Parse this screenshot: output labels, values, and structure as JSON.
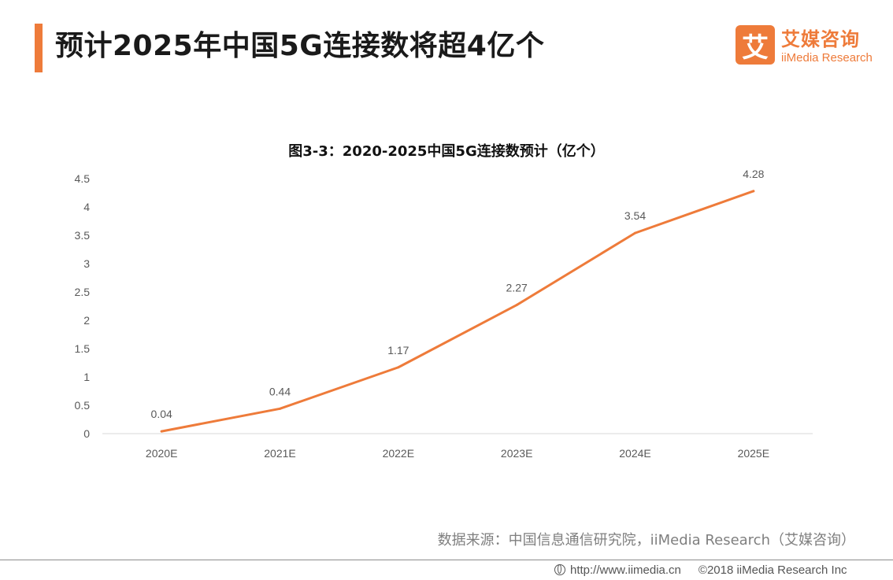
{
  "header": {
    "title": "预计2025年中国5G连接数将超4亿个"
  },
  "logo": {
    "mark": "艾",
    "name_cn": "艾媒咨询",
    "name_en": "iiMedia Research"
  },
  "chart_data": {
    "type": "line",
    "title": "图3-3：2020-2025中国5G连接数预计（亿个）",
    "categories": [
      "2020E",
      "2021E",
      "2022E",
      "2023E",
      "2024E",
      "2025E"
    ],
    "series": [
      {
        "values": [
          0.04,
          0.44,
          1.17,
          2.27,
          3.54,
          4.28
        ],
        "color": "#ee7b3a"
      }
    ],
    "data_labels": [
      "0.04",
      "0.44",
      "1.17",
      "2.27",
      "3.54",
      "4.28"
    ],
    "yticks": [
      "0",
      "0.5",
      "1",
      "1.5",
      "2",
      "2.5",
      "3",
      "3.5",
      "4",
      "4.5"
    ],
    "ylim": [
      0,
      4.5
    ],
    "xlabel": "",
    "ylabel": "",
    "grid": false,
    "legend": "none"
  },
  "source": "数据来源：中国信息通信研究院，iiMedia Research（艾媒咨询）",
  "footer": {
    "icon": "globe-icon",
    "url": "http://www.iimedia.cn",
    "copyright": "©2018  iiMedia Research  Inc"
  },
  "colors": {
    "accent": "#ee7b3a"
  }
}
